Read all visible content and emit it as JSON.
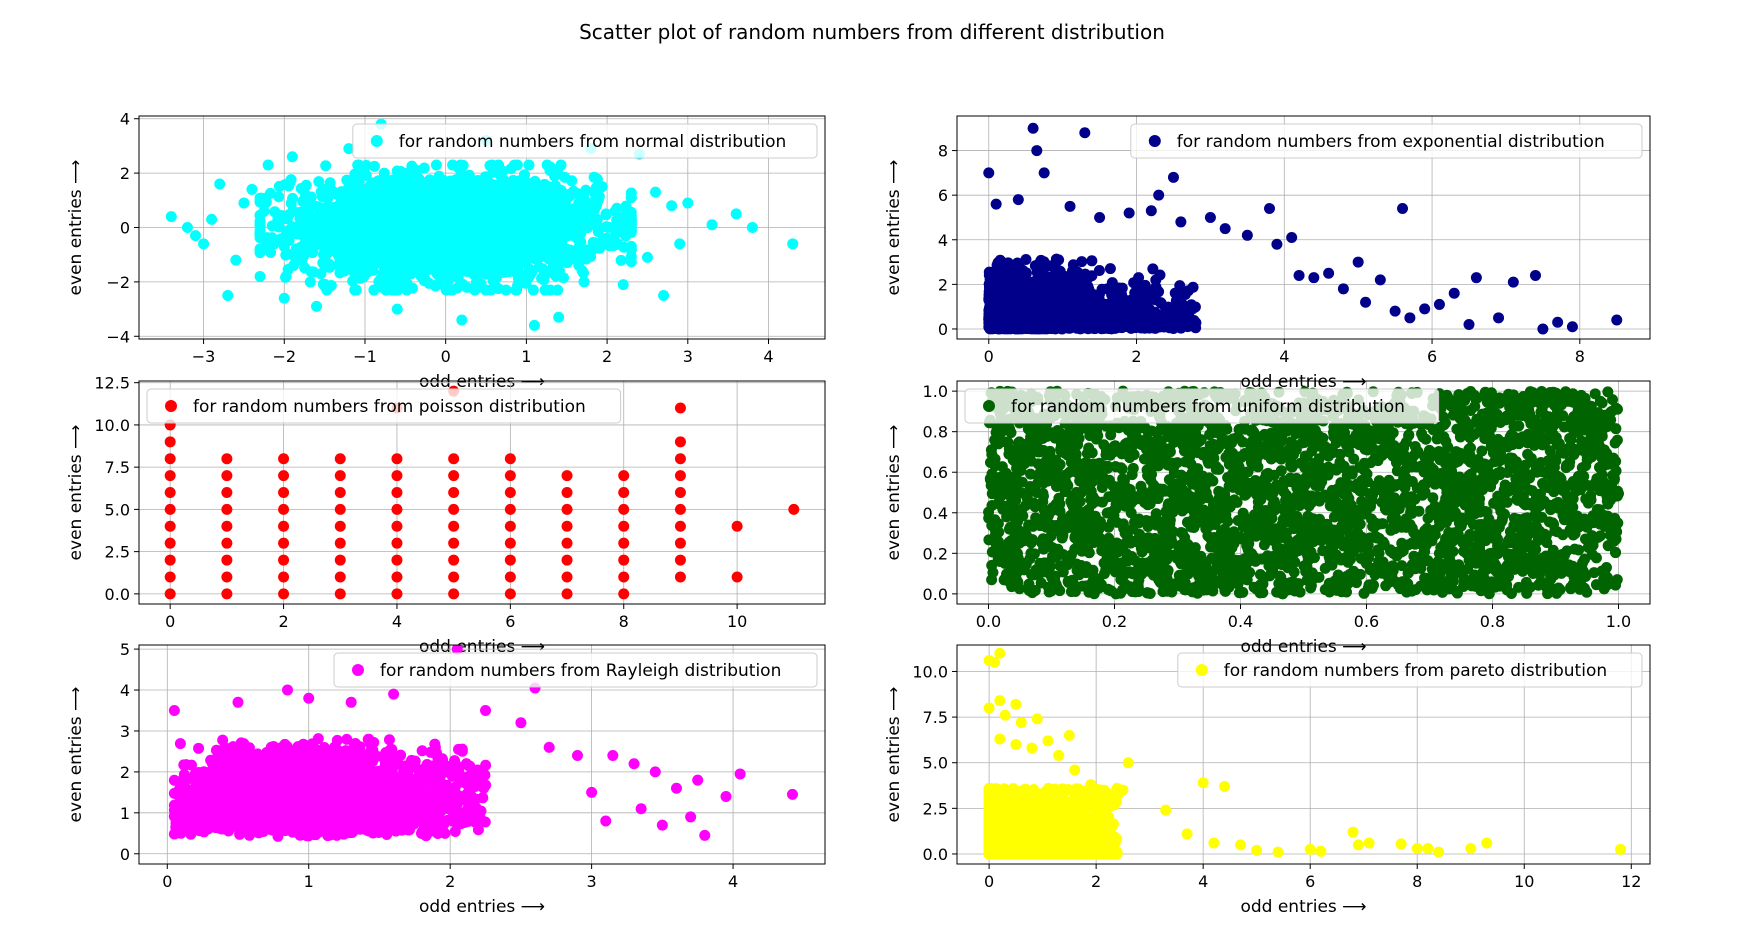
{
  "figure": {
    "title": "Scatter plot of random numbers from different distribution"
  },
  "chart_data": [
    {
      "type": "scatter",
      "key": "normal",
      "title": "",
      "xlabel": "odd entries ⟶",
      "ylabel": "even entries ⟶",
      "xlim": [
        -3.8,
        4.7
      ],
      "ylim": [
        -4.1,
        4.1
      ],
      "xticks": [
        -3,
        -2,
        -1,
        0,
        1,
        2,
        3,
        4
      ],
      "yticks": [
        -4,
        -2,
        0,
        2,
        4
      ],
      "grid": true,
      "legend": {
        "label": "for random numbers from normal distribution",
        "placement": "top-right"
      },
      "series": [
        {
          "name": "for random numbers from normal distribution",
          "color": "#00ffff"
        }
      ],
      "cloud": {
        "dist": "normal",
        "xmin": -2.3,
        "xmax": 2.3,
        "ymin": -2.3,
        "ymax": 2.3
      },
      "points": [
        {
          "x": -3.4,
          "y": 0.4
        },
        {
          "x": -3.2,
          "y": 0.0
        },
        {
          "x": -3.1,
          "y": -0.3
        },
        {
          "x": -3.0,
          "y": -0.6
        },
        {
          "x": -2.9,
          "y": 0.3
        },
        {
          "x": -2.8,
          "y": 1.6
        },
        {
          "x": -2.6,
          "y": -1.2
        },
        {
          "x": -2.5,
          "y": 0.9
        },
        {
          "x": -2.7,
          "y": -2.5
        },
        {
          "x": -2.4,
          "y": 1.4
        },
        {
          "x": -2.3,
          "y": -1.8
        },
        {
          "x": -2.2,
          "y": 2.3
        },
        {
          "x": -2.0,
          "y": -2.6
        },
        {
          "x": -1.9,
          "y": 2.6
        },
        {
          "x": -1.6,
          "y": -2.9
        },
        {
          "x": -1.2,
          "y": 2.9
        },
        {
          "x": -0.8,
          "y": 3.8
        },
        {
          "x": -0.6,
          "y": -3.0
        },
        {
          "x": 0.2,
          "y": -3.4
        },
        {
          "x": 0.5,
          "y": 3.2
        },
        {
          "x": 1.1,
          "y": -3.6
        },
        {
          "x": 1.4,
          "y": -3.3
        },
        {
          "x": 1.8,
          "y": 2.9
        },
        {
          "x": 2.2,
          "y": -2.1
        },
        {
          "x": 2.4,
          "y": 2.7
        },
        {
          "x": 2.5,
          "y": -1.1
        },
        {
          "x": 2.6,
          "y": 1.3
        },
        {
          "x": 2.7,
          "y": -2.5
        },
        {
          "x": 2.8,
          "y": 0.8
        },
        {
          "x": 2.9,
          "y": -0.6
        },
        {
          "x": 3.0,
          "y": 0.9
        },
        {
          "x": 3.3,
          "y": 0.1
        },
        {
          "x": 3.6,
          "y": 0.5
        },
        {
          "x": 3.8,
          "y": 0.0
        },
        {
          "x": 4.3,
          "y": -0.6
        }
      ]
    },
    {
      "type": "scatter",
      "key": "exponential",
      "title": "",
      "xlabel": "odd entries ⟶",
      "ylabel": "even entries ⟶",
      "xlim": [
        -0.43,
        8.95
      ],
      "ylim": [
        -0.45,
        9.55
      ],
      "xticks": [
        0,
        2,
        4,
        6,
        8
      ],
      "yticks": [
        0,
        2,
        4,
        6,
        8
      ],
      "grid": true,
      "legend": {
        "label": "for random numbers from exponential distribution",
        "placement": "top-right"
      },
      "series": [
        {
          "name": "for random numbers from exponential distribution",
          "color": "#00008b"
        }
      ],
      "cloud": {
        "dist": "exponential",
        "xmin": 0,
        "xmax": 3.2,
        "ymin": 0,
        "ymax": 3.5
      },
      "points": [
        {
          "x": 0.6,
          "y": 9.0
        },
        {
          "x": 0.65,
          "y": 8.0
        },
        {
          "x": 1.3,
          "y": 8.8
        },
        {
          "x": 0.0,
          "y": 7.0
        },
        {
          "x": 0.75,
          "y": 7.0
        },
        {
          "x": 0.1,
          "y": 5.6
        },
        {
          "x": 0.4,
          "y": 5.8
        },
        {
          "x": 1.1,
          "y": 5.5
        },
        {
          "x": 1.5,
          "y": 5.0
        },
        {
          "x": 1.9,
          "y": 5.2
        },
        {
          "x": 2.3,
          "y": 6.0
        },
        {
          "x": 2.5,
          "y": 6.8
        },
        {
          "x": 2.2,
          "y": 5.3
        },
        {
          "x": 2.6,
          "y": 4.8
        },
        {
          "x": 3.0,
          "y": 5.0
        },
        {
          "x": 3.2,
          "y": 4.5
        },
        {
          "x": 3.5,
          "y": 4.2
        },
        {
          "x": 3.8,
          "y": 5.4
        },
        {
          "x": 3.9,
          "y": 3.8
        },
        {
          "x": 4.1,
          "y": 4.1
        },
        {
          "x": 4.2,
          "y": 2.4
        },
        {
          "x": 4.4,
          "y": 2.3
        },
        {
          "x": 4.6,
          "y": 2.5
        },
        {
          "x": 4.8,
          "y": 1.8
        },
        {
          "x": 5.0,
          "y": 3.0
        },
        {
          "x": 5.1,
          "y": 1.2
        },
        {
          "x": 5.3,
          "y": 2.2
        },
        {
          "x": 5.5,
          "y": 0.8
        },
        {
          "x": 5.7,
          "y": 0.5
        },
        {
          "x": 5.6,
          "y": 5.4
        },
        {
          "x": 5.9,
          "y": 0.9
        },
        {
          "x": 6.1,
          "y": 1.1
        },
        {
          "x": 6.3,
          "y": 1.6
        },
        {
          "x": 6.5,
          "y": 0.2
        },
        {
          "x": 6.6,
          "y": 2.3
        },
        {
          "x": 6.9,
          "y": 0.5
        },
        {
          "x": 7.1,
          "y": 2.1
        },
        {
          "x": 7.4,
          "y": 2.4
        },
        {
          "x": 7.5,
          "y": 0.0
        },
        {
          "x": 7.7,
          "y": 0.3
        },
        {
          "x": 7.9,
          "y": 0.1
        },
        {
          "x": 8.5,
          "y": 0.4
        }
      ]
    },
    {
      "type": "scatter",
      "key": "poisson",
      "title": "",
      "xlabel": "odd entries ⟶",
      "ylabel": "even entries ⟶",
      "xlim": [
        -0.55,
        11.55
      ],
      "ylim": [
        -0.6,
        12.6
      ],
      "xticks": [
        0,
        2,
        4,
        6,
        8,
        10
      ],
      "yticks": [
        0.0,
        2.5,
        5.0,
        7.5,
        10.0,
        12.5
      ],
      "ytick_labels": [
        "0.0",
        "2.5",
        "5.0",
        "7.5",
        "10.0",
        "12.5"
      ],
      "grid": true,
      "legend": {
        "label": "for random numbers from poisson distribution",
        "placement": "top-left"
      },
      "series": [
        {
          "name": "for random numbers from poisson distribution",
          "color": "#ff0000"
        }
      ],
      "columns": [
        {
          "x": 0,
          "ymax": 10
        },
        {
          "x": 1,
          "ymax": 8
        },
        {
          "x": 2,
          "ymax": 8
        },
        {
          "x": 3,
          "ymax": 8
        },
        {
          "x": 4,
          "ymax": 8
        },
        {
          "x": 5,
          "ymax": 8
        },
        {
          "x": 6,
          "ymax": 8
        },
        {
          "x": 7,
          "ymax": 7
        },
        {
          "x": 8,
          "ymax": 7
        },
        {
          "x": 9,
          "ymin": 1,
          "ymax": 9
        }
      ],
      "points": [
        {
          "x": 9,
          "y": 11
        },
        {
          "x": 5,
          "y": 12
        },
        {
          "x": 4,
          "y": 11
        },
        {
          "x": 10,
          "y": 4
        },
        {
          "x": 10,
          "y": 1
        },
        {
          "x": 11,
          "y": 5
        }
      ]
    },
    {
      "type": "scatter",
      "key": "uniform",
      "title": "",
      "xlabel": "odd entries ⟶",
      "ylabel": "even entries ⟶",
      "xlim": [
        -0.05,
        1.05
      ],
      "ylim": [
        -0.05,
        1.05
      ],
      "xticks": [
        0.0,
        0.2,
        0.4,
        0.6,
        0.8,
        1.0
      ],
      "yticks": [
        0.0,
        0.2,
        0.4,
        0.6,
        0.8,
        1.0
      ],
      "xtick_labels": [
        "0.0",
        "0.2",
        "0.4",
        "0.6",
        "0.8",
        "1.0"
      ],
      "ytick_labels": [
        "0.0",
        "0.2",
        "0.4",
        "0.6",
        "0.8",
        "1.0"
      ],
      "grid": true,
      "legend": {
        "label": "for random numbers from uniform distribution",
        "placement": "top-left"
      },
      "series": [
        {
          "name": "for random numbers from uniform distribution",
          "color": "#006400"
        }
      ],
      "cloud": {
        "dist": "uniform",
        "xmin": 0,
        "xmax": 1,
        "ymin": 0,
        "ymax": 1
      },
      "points": []
    },
    {
      "type": "scatter",
      "key": "rayleigh",
      "title": "",
      "xlabel": "odd entries ⟶",
      "ylabel": "even entries ⟶",
      "xlim": [
        -0.2,
        4.65
      ],
      "ylim": [
        -0.25,
        5.1
      ],
      "xticks": [
        0,
        1,
        2,
        3,
        4
      ],
      "yticks": [
        0,
        1,
        2,
        3,
        4,
        5
      ],
      "grid": true,
      "legend": {
        "label": "for random numbers from Rayleigh distribution",
        "placement": "top-right"
      },
      "series": [
        {
          "name": "for random numbers from Rayleigh distribution",
          "color": "#ff00ff"
        }
      ],
      "cloud": {
        "dist": "rayleigh",
        "xmin": 0.05,
        "xmax": 2.6,
        "ymin": 0.4,
        "ymax": 2.9
      },
      "points": [
        {
          "x": 0.05,
          "y": 3.5
        },
        {
          "x": 0.5,
          "y": 3.7
        },
        {
          "x": 0.85,
          "y": 4.0
        },
        {
          "x": 1.0,
          "y": 3.8
        },
        {
          "x": 1.3,
          "y": 3.7
        },
        {
          "x": 1.6,
          "y": 3.9
        },
        {
          "x": 2.05,
          "y": 5.0
        },
        {
          "x": 2.6,
          "y": 4.05
        },
        {
          "x": 2.25,
          "y": 3.5
        },
        {
          "x": 2.5,
          "y": 3.2
        },
        {
          "x": 2.7,
          "y": 2.6
        },
        {
          "x": 2.9,
          "y": 2.4
        },
        {
          "x": 3.0,
          "y": 1.5
        },
        {
          "x": 3.1,
          "y": 0.8
        },
        {
          "x": 3.15,
          "y": 2.4
        },
        {
          "x": 3.3,
          "y": 2.2
        },
        {
          "x": 3.35,
          "y": 1.1
        },
        {
          "x": 3.45,
          "y": 2.0
        },
        {
          "x": 3.5,
          "y": 0.7
        },
        {
          "x": 3.6,
          "y": 1.6
        },
        {
          "x": 3.7,
          "y": 0.9
        },
        {
          "x": 3.75,
          "y": 1.8
        },
        {
          "x": 3.8,
          "y": 0.45
        },
        {
          "x": 3.95,
          "y": 1.4
        },
        {
          "x": 4.05,
          "y": 1.95
        },
        {
          "x": 4.42,
          "y": 1.45
        }
      ]
    },
    {
      "type": "scatter",
      "key": "pareto",
      "title": "",
      "xlabel": "odd entries ⟶",
      "ylabel": "even entries ⟶",
      "xlim": [
        -0.6,
        12.35
      ],
      "ylim": [
        -0.55,
        11.45
      ],
      "xticks": [
        0,
        2,
        4,
        6,
        8,
        10,
        12
      ],
      "yticks": [
        0.0,
        2.5,
        5.0,
        7.5,
        10.0
      ],
      "ytick_labels": [
        "0.0",
        "2.5",
        "5.0",
        "7.5",
        "10.0"
      ],
      "grid": true,
      "legend": {
        "label": "for random numbers from pareto distribution",
        "placement": "top-right"
      },
      "series": [
        {
          "name": "for random numbers from pareto distribution",
          "color": "#ffff00"
        }
      ],
      "cloud": {
        "dist": "pareto",
        "xmin": 0,
        "xmax": 2.4,
        "ymin": 0,
        "ymax": 3.6
      },
      "points": [
        {
          "x": 0.0,
          "y": 10.6
        },
        {
          "x": 0.1,
          "y": 10.5
        },
        {
          "x": 0.2,
          "y": 11.0
        },
        {
          "x": 0.0,
          "y": 8.0
        },
        {
          "x": 0.2,
          "y": 8.4
        },
        {
          "x": 0.5,
          "y": 8.2
        },
        {
          "x": 0.3,
          "y": 7.6
        },
        {
          "x": 0.6,
          "y": 7.2
        },
        {
          "x": 0.9,
          "y": 7.4
        },
        {
          "x": 0.2,
          "y": 6.3
        },
        {
          "x": 0.5,
          "y": 6.0
        },
        {
          "x": 0.8,
          "y": 5.8
        },
        {
          "x": 1.1,
          "y": 6.2
        },
        {
          "x": 1.3,
          "y": 5.4
        },
        {
          "x": 1.5,
          "y": 6.5
        },
        {
          "x": 1.6,
          "y": 4.6
        },
        {
          "x": 1.9,
          "y": 3.8
        },
        {
          "x": 2.6,
          "y": 5.0
        },
        {
          "x": 2.5,
          "y": 3.5
        },
        {
          "x": 3.3,
          "y": 2.4
        },
        {
          "x": 4.0,
          "y": 3.9
        },
        {
          "x": 4.4,
          "y": 3.7
        },
        {
          "x": 3.7,
          "y": 1.1
        },
        {
          "x": 4.2,
          "y": 0.6
        },
        {
          "x": 4.7,
          "y": 0.5
        },
        {
          "x": 5.0,
          "y": 0.2
        },
        {
          "x": 5.4,
          "y": 0.1
        },
        {
          "x": 6.0,
          "y": 0.25
        },
        {
          "x": 6.2,
          "y": 0.15
        },
        {
          "x": 6.8,
          "y": 1.2
        },
        {
          "x": 6.9,
          "y": 0.5
        },
        {
          "x": 7.1,
          "y": 0.6
        },
        {
          "x": 7.7,
          "y": 0.55
        },
        {
          "x": 8.0,
          "y": 0.3
        },
        {
          "x": 8.2,
          "y": 0.3
        },
        {
          "x": 8.4,
          "y": 0.1
        },
        {
          "x": 9.0,
          "y": 0.3
        },
        {
          "x": 9.3,
          "y": 0.6
        },
        {
          "x": 11.8,
          "y": 0.25
        }
      ]
    }
  ]
}
